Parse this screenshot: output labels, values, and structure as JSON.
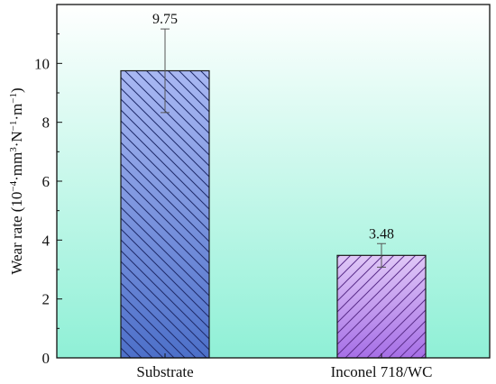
{
  "chart_data": {
    "type": "bar",
    "categories": [
      "Substrate",
      "Inconel 718/WC"
    ],
    "values": [
      9.75,
      3.48
    ],
    "errors": [
      1.42,
      0.4
    ],
    "data_labels": [
      "9.75",
      "3.48"
    ],
    "ylabel": {
      "base": "Wear rate (10",
      "sup1": "−4",
      "mid1": "·mm",
      "sup2": "3",
      "mid2": "·N",
      "sup3": "−1",
      "mid3": "·m",
      "sup4": "−1",
      "end": ")"
    },
    "xlabel": "",
    "ylim": [
      0,
      12
    ],
    "yticks": [
      0,
      2,
      4,
      6,
      8,
      10
    ],
    "ytick_labels": [
      "0",
      "2",
      "4",
      "6",
      "8",
      "10"
    ],
    "grid": false,
    "bar_colors": [
      {
        "top": "#a9b8f3",
        "bottom": "#4d70c9",
        "edge": "#1a1a1a",
        "hatch": "#1e2a6a"
      },
      {
        "top": "#e0c8f7",
        "bottom": "#a66fe6",
        "edge": "#1a1a1a",
        "hatch": "#5a2d8a"
      }
    ],
    "background": {
      "top": "#ffffff",
      "bottom": "#8ff0d6"
    }
  }
}
